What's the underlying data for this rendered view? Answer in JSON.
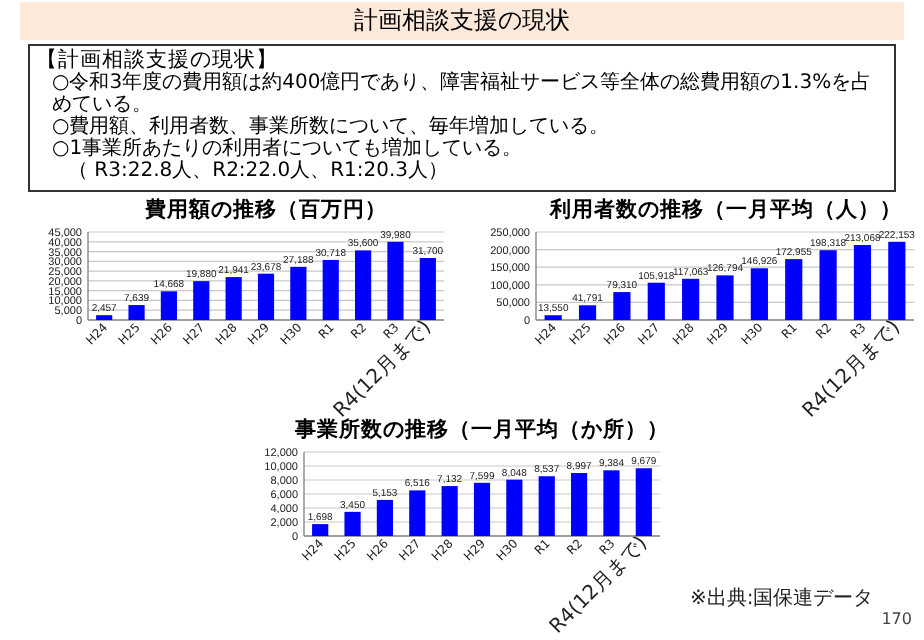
{
  "chart_data": [
    {
      "type": "other",
      "title": "計画相談支援の現状",
      "annotations": [
        "【計画相談支援の現状】",
        "○令和3年度の費用額は約400億円であり、障害福祉サービス等全体の総費用額の1.3%を占めている。",
        "○費用額、利用者数、事業所数について、毎年増加している。",
        "○1事業所あたりの利用者についても増加している。",
        "（ R3:22.8人、R2:22.0人、R1:20.3人）",
        "170"
      ]
    },
    {
      "type": "bar",
      "title": "費用額の推移（百万円）",
      "categories": [
        "H24",
        "H25",
        "H26",
        "H27",
        "H28",
        "H29",
        "H30",
        "R1",
        "R2",
        "R3",
        "R4(12月まで)"
      ],
      "values": [
        2457,
        7639,
        14668,
        19880,
        21941,
        23678,
        27188,
        30718,
        35600,
        39980,
        31700
      ],
      "value_labels": [
        "2,457",
        "7,639",
        "14,668",
        "19,880",
        "21,941",
        "23,678",
        "27,188",
        "30,718",
        "35,600",
        "39,980",
        "31,700"
      ],
      "color": "#0000ff",
      "ylim": [
        0,
        45000
      ],
      "yticks": [
        {
          "value": 0,
          "label": "0"
        },
        {
          "value": 5000,
          "label": "5,000"
        },
        {
          "value": 10000,
          "label": "10,000"
        },
        {
          "value": 15000,
          "label": "15,000"
        },
        {
          "value": 20000,
          "label": "20,000"
        },
        {
          "value": 25000,
          "label": "25,000"
        },
        {
          "value": 30000,
          "label": "30,000"
        },
        {
          "value": 35000,
          "label": "35,000"
        },
        {
          "value": 40000,
          "label": "40,000"
        },
        {
          "value": 45000,
          "label": "45,000"
        }
      ],
      "grid": "y"
    },
    {
      "type": "bar",
      "title": "利用者数の推移（一月平均（人））",
      "categories": [
        "H24",
        "H25",
        "H26",
        "H27",
        "H28",
        "H29",
        "H30",
        "R1",
        "R2",
        "R3",
        "R4(12月まで)"
      ],
      "values": [
        13550,
        41791,
        79310,
        105918,
        117063,
        126794,
        146926,
        172955,
        198318,
        213068,
        222153
      ],
      "value_labels": [
        "13,550",
        "41,791",
        "79,310",
        "105,918",
        "117,063",
        "126,794",
        "146,926",
        "172,955",
        "198,318",
        "213,068",
        "222,153"
      ],
      "color": "#0000ff",
      "ylim": [
        0,
        250000
      ],
      "yticks": [
        {
          "value": 0,
          "label": "0"
        },
        {
          "value": 50000,
          "label": "50,000"
        },
        {
          "value": 100000,
          "label": "100,000"
        },
        {
          "value": 150000,
          "label": "150,000"
        },
        {
          "value": 200000,
          "label": "200,000"
        },
        {
          "value": 250000,
          "label": "250,000"
        }
      ],
      "grid": "y"
    },
    {
      "type": "bar",
      "title": "事業所数の推移（一月平均（か所））",
      "categories": [
        "H24",
        "H25",
        "H26",
        "H27",
        "H28",
        "H29",
        "H30",
        "R1",
        "R2",
        "R3",
        "R4(12月まで)"
      ],
      "values": [
        1698,
        3450,
        5153,
        6516,
        7132,
        7599,
        8048,
        8537,
        8997,
        9384,
        9679
      ],
      "value_labels": [
        "1,698",
        "3,450",
        "5,153",
        "6,516",
        "7,132",
        "7,599",
        "8,048",
        "8,537",
        "8,997",
        "9,384",
        "9,679"
      ],
      "color": "#0000ff",
      "ylim": [
        0,
        12000
      ],
      "yticks": [
        {
          "value": 0,
          "label": "0"
        },
        {
          "value": 2000,
          "label": "2,000"
        },
        {
          "value": 4000,
          "label": "4,000"
        },
        {
          "value": 6000,
          "label": "6,000"
        },
        {
          "value": 8000,
          "label": "8,000"
        },
        {
          "value": 10000,
          "label": "10,000"
        },
        {
          "value": 12000,
          "label": "12,000"
        }
      ],
      "grid": "y",
      "annotations": [
        "※出典:国保連データ"
      ]
    }
  ]
}
